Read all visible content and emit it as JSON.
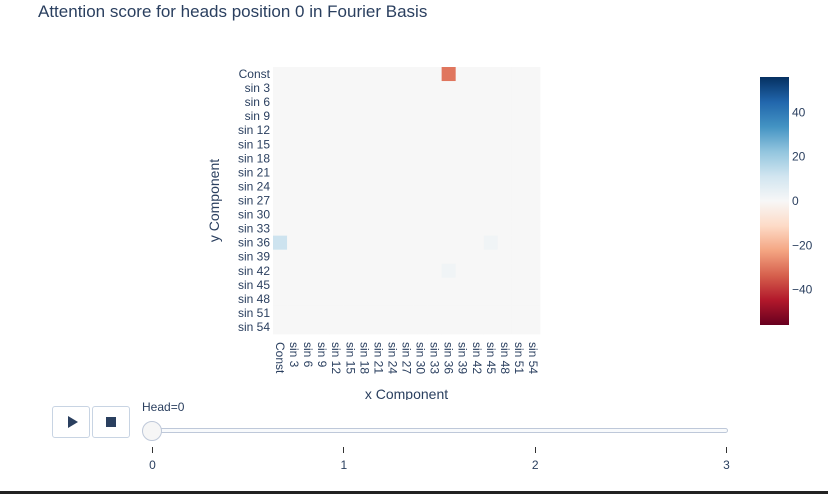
{
  "chart_data": {
    "type": "heatmap",
    "title": "Attention score for heads position 0 in Fourier Basis",
    "xlabel": "x Component",
    "ylabel": "y Component",
    "x_labels": [
      "Const",
      "sin 3",
      "sin 6",
      "sin 9",
      "sin 12",
      "sin 15",
      "sin 18",
      "sin 21",
      "sin 24",
      "sin 27",
      "sin 30",
      "sin 33",
      "sin 36",
      "sin 39",
      "sin 42",
      "sin 45",
      "sin 48",
      "sin 51",
      "sin 54"
    ],
    "y_labels": [
      "Const",
      "sin 3",
      "sin 6",
      "sin 9",
      "sin 12",
      "sin 15",
      "sin 18",
      "sin 21",
      "sin 24",
      "sin 27",
      "sin 30",
      "sin 33",
      "sin 36",
      "sin 39",
      "sin 42",
      "sin 45",
      "sin 48",
      "sin 51",
      "sin 54"
    ],
    "z_default": 0,
    "notable_cells": [
      {
        "x": "sin 36",
        "y": "Const",
        "value": -30
      },
      {
        "x": "Const",
        "y": "sin 36",
        "value": 12
      },
      {
        "x": "sin 45",
        "y": "sin 36",
        "value": 2
      },
      {
        "x": "sin 36",
        "y": "sin 42",
        "value": 2
      }
    ],
    "colorscale": [
      "#67001f",
      "#b2182b",
      "#d6604d",
      "#f4a582",
      "#fddbc7",
      "#f7f7f7",
      "#d1e5f0",
      "#92c5de",
      "#4393c3",
      "#2166ac",
      "#053061"
    ],
    "zrange": [
      -56,
      56
    ],
    "colorbar_ticks": [
      40,
      20,
      0,
      -20,
      -40
    ]
  },
  "slider": {
    "label": "Head=0",
    "steps": [
      "0",
      "1",
      "2",
      "3"
    ],
    "active": 0
  },
  "controls": {
    "play_icon": "play-icon",
    "stop_icon": "stop-icon"
  }
}
